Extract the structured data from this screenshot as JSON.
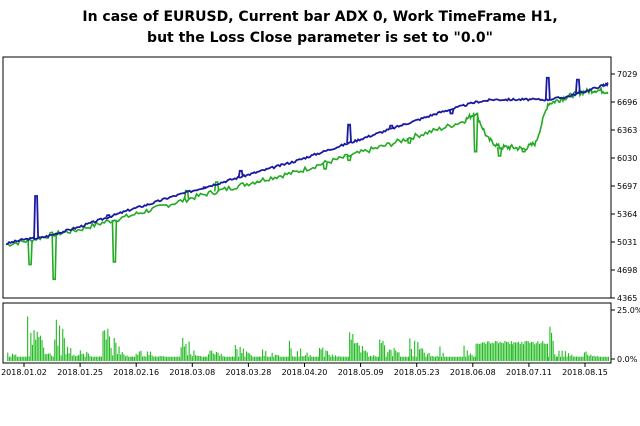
{
  "header": {
    "line1": "In case of EURUSD, Current bar ADX 0, Work TimeFrame  H1,",
    "line2": "but the Loss Close parameter is set to \"0.0\""
  },
  "colors": {
    "balance": "#1a1aa0",
    "equity": "#22aa22",
    "load": "#22bb22",
    "frame": "#000000"
  },
  "chart_data": [
    {
      "type": "line",
      "title": "",
      "ylabel": "",
      "yticks": [
        "7029",
        "6696",
        "6363",
        "6030",
        "5697",
        "5364",
        "5031",
        "4698",
        "4365"
      ],
      "ylim": [
        4365,
        7140
      ],
      "grid": false,
      "series": [
        {
          "name": "",
          "color": "#1a1aa0",
          "x": [
            0,
            3,
            6,
            9,
            12,
            15,
            18,
            21,
            24,
            27,
            30,
            33,
            36,
            39,
            42,
            45,
            48,
            51,
            54,
            57,
            60,
            63,
            66,
            69,
            72,
            75,
            78,
            81,
            84,
            87,
            90,
            93,
            96,
            99,
            100
          ],
          "y": [
            4990,
            5040,
            5060,
            5120,
            5180,
            5250,
            5320,
            5390,
            5450,
            5520,
            5580,
            5640,
            5700,
            5760,
            5820,
            5880,
            5940,
            6010,
            6080,
            6150,
            6220,
            6290,
            6360,
            6430,
            6500,
            6560,
            6620,
            6650,
            6650,
            6650,
            6650,
            6680,
            6740,
            6810,
            6830
          ],
          "spikes": [
            [
              5,
              5540
            ],
            [
              17,
              5320
            ],
            [
              33,
              5640
            ],
            [
              39,
              5830
            ],
            [
              57,
              6360
            ],
            [
              64,
              6350
            ],
            [
              74,
              6490
            ],
            [
              90,
              6900
            ],
            [
              95,
              6880
            ]
          ]
        },
        {
          "name": "",
          "color": "#22aa22",
          "x": [
            0,
            4,
            8,
            12,
            16,
            20,
            24,
            28,
            32,
            36,
            40,
            44,
            48,
            52,
            56,
            60,
            64,
            68,
            72,
            76,
            78,
            80,
            82,
            84,
            86,
            88,
            90,
            92,
            94,
            96,
            98,
            100
          ],
          "y": [
            4980,
            5030,
            5100,
            5150,
            5230,
            5300,
            5380,
            5460,
            5540,
            5610,
            5680,
            5750,
            5810,
            5900,
            5980,
            6060,
            6140,
            6230,
            6310,
            6400,
            6500,
            6200,
            6100,
            6100,
            6080,
            6150,
            6600,
            6650,
            6700,
            6740,
            6760,
            6740
          ],
          "drops": [
            [
              4,
              4750
            ],
            [
              8,
              4580
            ],
            [
              18,
              4780
            ],
            [
              30,
              5600
            ],
            [
              35,
              5700
            ],
            [
              42,
              5700
            ],
            [
              53,
              5850
            ],
            [
              57,
              5950
            ],
            [
              67,
              6150
            ],
            [
              78,
              6050
            ],
            [
              82,
              6000
            ],
            [
              86,
              6050
            ]
          ]
        }
      ],
      "xticks": [
        "2018.01.02",
        "2018.01.25",
        "2018.02.16",
        "2018.03.08",
        "2018.03.28",
        "2018.04.20",
        "2018.05.09",
        "2018.05.23",
        "2018.06.08",
        "2018.07.11",
        "2018.08.15"
      ]
    },
    {
      "type": "bar",
      "title": "",
      "yticks": [
        "25.0%",
        "0.0%"
      ],
      "ylim": [
        0,
        25
      ],
      "series": [
        {
          "name": "",
          "color": "#22bb22",
          "bursts": [
            {
              "start": 0.2,
              "end": 3.5,
              "peak": 4
            },
            {
              "start": 3.5,
              "end": 8.0,
              "peak": 25
            },
            {
              "start": 8.0,
              "end": 12.0,
              "peak": 23
            },
            {
              "start": 12.0,
              "end": 15.5,
              "peak": 6
            },
            {
              "start": 15.5,
              "end": 21.0,
              "peak": 21
            },
            {
              "start": 21.0,
              "end": 29.0,
              "peak": 6
            },
            {
              "start": 29.0,
              "end": 33.0,
              "peak": 13
            },
            {
              "start": 33.0,
              "end": 38.0,
              "peak": 9
            },
            {
              "start": 38.0,
              "end": 42.0,
              "peak": 8
            },
            {
              "start": 42.0,
              "end": 47.0,
              "peak": 6
            },
            {
              "start": 47.0,
              "end": 52.0,
              "peak": 10
            },
            {
              "start": 52.0,
              "end": 57.0,
              "peak": 7
            },
            {
              "start": 57.0,
              "end": 62.0,
              "peak": 14
            },
            {
              "start": 62.0,
              "end": 67.0,
              "peak": 11
            },
            {
              "start": 67.0,
              "end": 72.0,
              "peak": 12
            },
            {
              "start": 72.0,
              "end": 76.0,
              "peak": 6
            },
            {
              "start": 76.0,
              "end": 78.0,
              "peak": 8
            },
            {
              "start": 78.0,
              "end": 84.0,
              "peak": 9,
              "flat": true
            },
            {
              "start": 84.0,
              "end": 90.0,
              "peak": 9,
              "flat": true
            },
            {
              "start": 90.0,
              "end": 91.5,
              "peak": 21
            },
            {
              "start": 91.5,
              "end": 96.0,
              "peak": 6
            },
            {
              "start": 96.0,
              "end": 100,
              "peak": 4
            }
          ]
        }
      ]
    }
  ]
}
